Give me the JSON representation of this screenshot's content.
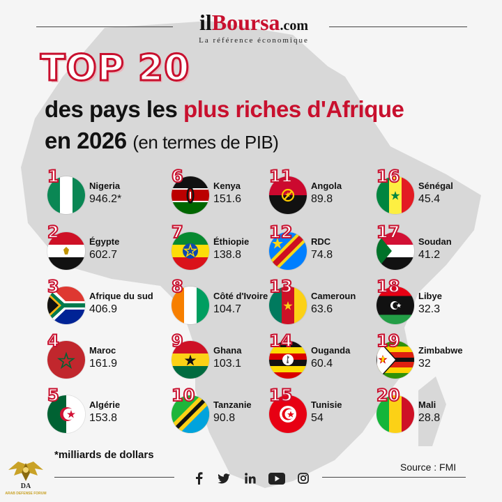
{
  "header": {
    "logo_il": "il",
    "logo_boursa": "Boursa",
    "logo_com": ".com",
    "tagline": "La référence économique",
    "title_top": "TOP 20",
    "title_line1_a": "des pays les ",
    "title_line1_b": "plus riches d'Afrique",
    "title_line2_a": "en 2026 ",
    "title_line2_b": "(en termes de PIB)"
  },
  "chart_data": {
    "type": "table",
    "title": "TOP 20 des pays les plus riches d'Afrique en 2026 (en termes de PIB)",
    "unit_note": "*milliards de dollars",
    "source": "Source : FMI",
    "rows": [
      {
        "rank": "1",
        "country": "Nigeria",
        "value": 946.2,
        "display": "946.2*"
      },
      {
        "rank": "2",
        "country": "Égypte",
        "value": 602.7,
        "display": "602.7"
      },
      {
        "rank": "3",
        "country": "Afrique du sud",
        "value": 406.9,
        "display": "406.9"
      },
      {
        "rank": "4",
        "country": "Maroc",
        "value": 161.9,
        "display": "161.9"
      },
      {
        "rank": "5",
        "country": "Algérie",
        "value": 153.8,
        "display": "153.8"
      },
      {
        "rank": "6",
        "country": "Kenya",
        "value": 151.6,
        "display": "151.6"
      },
      {
        "rank": "7",
        "country": "Éthiopie",
        "value": 138.8,
        "display": "138.8"
      },
      {
        "rank": "8",
        "country": "Côté d'Ivoire",
        "value": 104.7,
        "display": "104.7"
      },
      {
        "rank": "9",
        "country": "Ghana",
        "value": 103.1,
        "display": "103.1"
      },
      {
        "rank": "10",
        "country": "Tanzanie",
        "value": 90.8,
        "display": "90.8"
      },
      {
        "rank": "11",
        "country": "Angola",
        "value": 89.8,
        "display": "89.8"
      },
      {
        "rank": "12",
        "country": "RDC",
        "value": 74.8,
        "display": "74.8"
      },
      {
        "rank": "13",
        "country": "Cameroun",
        "value": 63.6,
        "display": "63.6"
      },
      {
        "rank": "14",
        "country": "Ouganda",
        "value": 60.4,
        "display": "60.4"
      },
      {
        "rank": "15",
        "country": "Tunisie",
        "value": 54,
        "display": "54"
      },
      {
        "rank": "16",
        "country": "Sénégal",
        "value": 45.4,
        "display": "45.4"
      },
      {
        "rank": "17",
        "country": "Soudan",
        "value": 41.2,
        "display": "41.2"
      },
      {
        "rank": "18",
        "country": "Libye",
        "value": 32.3,
        "display": "32.3"
      },
      {
        "rank": "19",
        "country": "Zimbabwe",
        "value": 32,
        "display": "32"
      },
      {
        "rank": "20",
        "country": "Mali",
        "value": 28.8,
        "display": "28.8"
      }
    ]
  },
  "footer": {
    "footnote": "*milliards de dollars",
    "source": "Source : FMI",
    "social_icons": [
      "facebook-icon",
      "twitter-icon",
      "linkedin-icon",
      "youtube-icon",
      "instagram-icon"
    ]
  },
  "watermark": {
    "line1": "DA",
    "line2": "ARAB DEFENSE FORUM"
  },
  "colors": {
    "accent": "#c8102e",
    "text": "#111111",
    "background": "#f5f5f5",
    "map": "#d9d9d9"
  }
}
